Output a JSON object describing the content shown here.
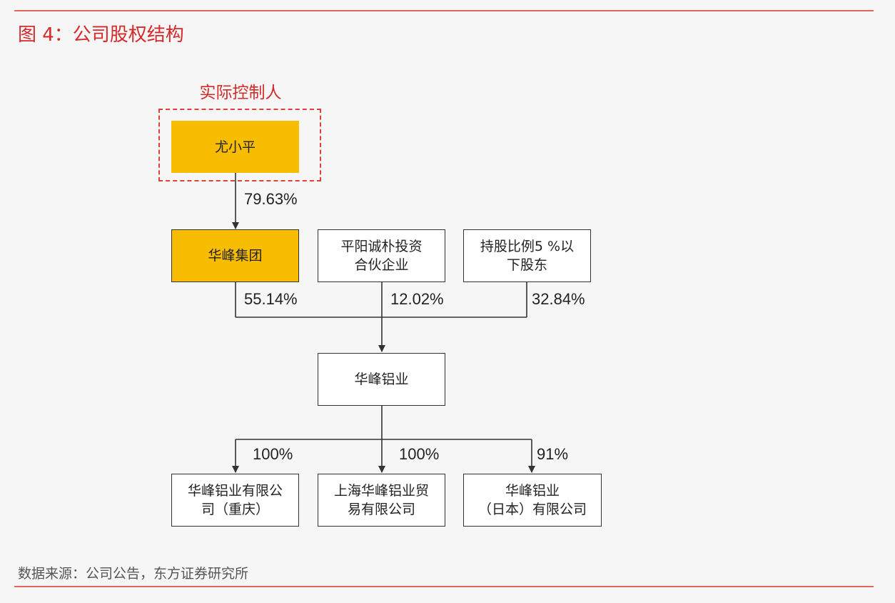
{
  "figure": {
    "title": "图 4：公司股权结构",
    "source": "数据来源：公司公告，东方证券研究所"
  },
  "controller_label": "实际控制人",
  "nodes": {
    "you_xiaoping": "尤小平",
    "huafeng_group": "华峰集团",
    "pingyang_partnership": "平阳诚朴投资合伙企业",
    "under_5pct_holders": "持股比例5 %以下股东",
    "huafeng_aluminum": "华峰铝业",
    "chongqing_sub": "华峰铝业有限公司（重庆）",
    "shanghai_sub": "上海华峰铝业贸易有限公司",
    "japan_sub": "华峰铝业（日本）有限公司"
  },
  "node_lines": {
    "pingyang_partnership": [
      "平阳诚朴投资",
      "合伙企业"
    ],
    "under_5pct_holders": [
      "持股比例5 %以",
      "下股东"
    ],
    "chongqing_sub": [
      "华峰铝业有限公",
      "司（重庆）"
    ],
    "shanghai_sub": [
      "上海华峰铝业贸",
      "易有限公司"
    ],
    "japan_sub": [
      "华峰铝业",
      "（日本）有限公司"
    ]
  },
  "stakes": {
    "you_to_group": "79.63%",
    "group_to_aluminum": "55.14%",
    "pingyang_to_aluminum": "12.02%",
    "others_to_aluminum": "32.84%",
    "aluminum_to_chongqing": "100%",
    "aluminum_to_shanghai": "100%",
    "aluminum_to_japan": "91%"
  },
  "colors": {
    "accent_red": "#d42a2a",
    "highlight_yellow": "#f8bd00",
    "rule": "#e06a5a"
  }
}
